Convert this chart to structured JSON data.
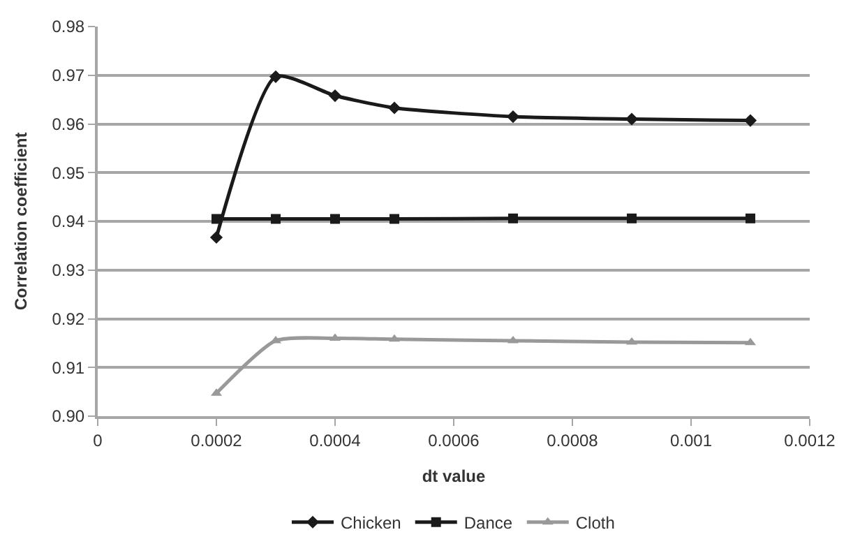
{
  "chart_data": {
    "type": "line",
    "xlabel": "dt value",
    "ylabel": "Correlation coefficient",
    "x": [
      0.0002,
      0.0003,
      0.0004,
      0.0005,
      0.0007,
      0.0009,
      0.0011
    ],
    "series": [
      {
        "name": "Chicken",
        "color": "#1a1a1a",
        "marker": "diamond",
        "values": [
          0.9367,
          0.9697,
          0.9658,
          0.9633,
          0.9615,
          0.961,
          0.9607
        ]
      },
      {
        "name": "Dance",
        "color": "#1a1a1a",
        "marker": "square",
        "values": [
          0.9405,
          0.9405,
          0.9405,
          0.9405,
          0.9406,
          0.9406,
          0.9406
        ]
      },
      {
        "name": "Cloth",
        "color": "#999999",
        "marker": "triangle",
        "values": [
          0.9047,
          0.9155,
          0.916,
          0.9158,
          0.9155,
          0.9152,
          0.9151
        ]
      }
    ],
    "xlim": [
      0,
      0.0012
    ],
    "xticks": [
      0,
      0.0002,
      0.0004,
      0.0006,
      0.0008,
      0.001,
      0.0012
    ],
    "ylim": [
      0.9,
      0.98
    ],
    "yticks": [
      {
        "value": 0.9,
        "label": "0.90"
      },
      0.91,
      0.92,
      0.93,
      0.94,
      0.95,
      0.96,
      0.97,
      0.98
    ],
    "grid": "y",
    "legend": "bottom",
    "line_style": "solid"
  }
}
